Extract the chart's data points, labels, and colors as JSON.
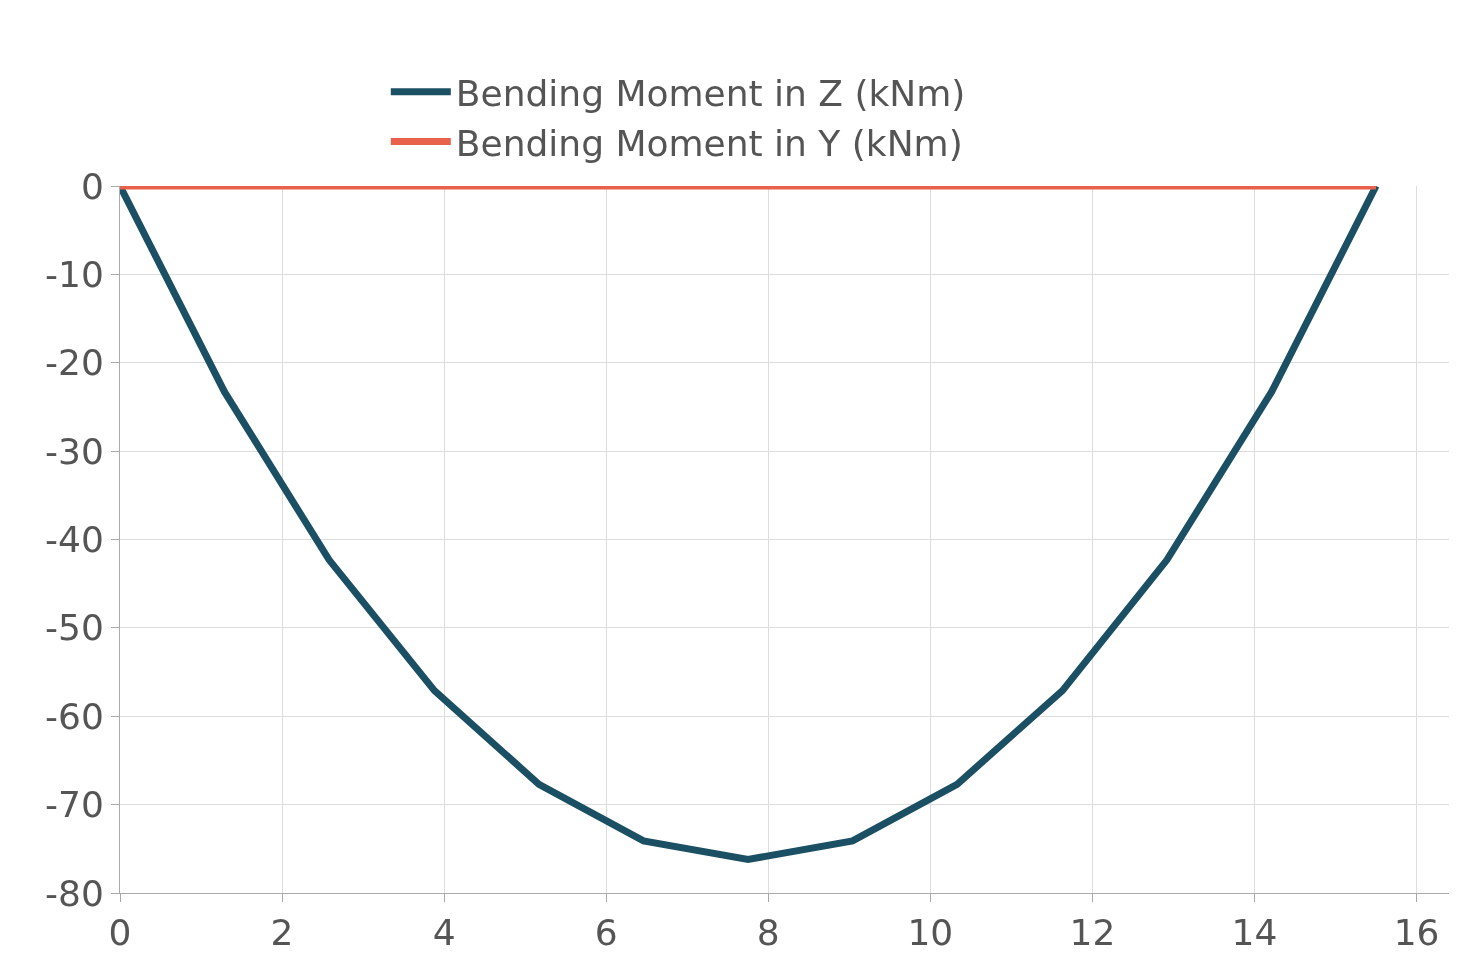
{
  "chart_data": {
    "type": "line",
    "x": [
      0,
      1.29,
      2.58,
      3.88,
      5.17,
      6.46,
      7.75,
      9.04,
      10.33,
      11.63,
      12.92,
      14.21,
      15.5
    ],
    "series": [
      {
        "name": "Bending Moment in Z (kNm)",
        "color": "#1b4f63",
        "values": [
          0,
          -23.3,
          -42.3,
          -57.1,
          -67.7,
          -74.1,
          -76.2,
          -74.1,
          -67.7,
          -57.1,
          -42.3,
          -23.3,
          0
        ]
      },
      {
        "name": "Bending Moment in Y (kNm)",
        "color": "#e8614a",
        "values": [
          0,
          0,
          0,
          0,
          0,
          0,
          0,
          0,
          0,
          0,
          0,
          0,
          0
        ]
      }
    ],
    "xlim": [
      0,
      16.4
    ],
    "xticks": [
      0,
      2,
      4,
      6,
      8,
      10,
      12,
      14,
      16
    ],
    "ylim": [
      -80,
      0
    ],
    "yticks": [
      0,
      -10,
      -20,
      -30,
      -40,
      -50,
      -60,
      -70,
      -80
    ],
    "grid": true,
    "legend": "top",
    "marker": "none",
    "line_style": "solid"
  }
}
